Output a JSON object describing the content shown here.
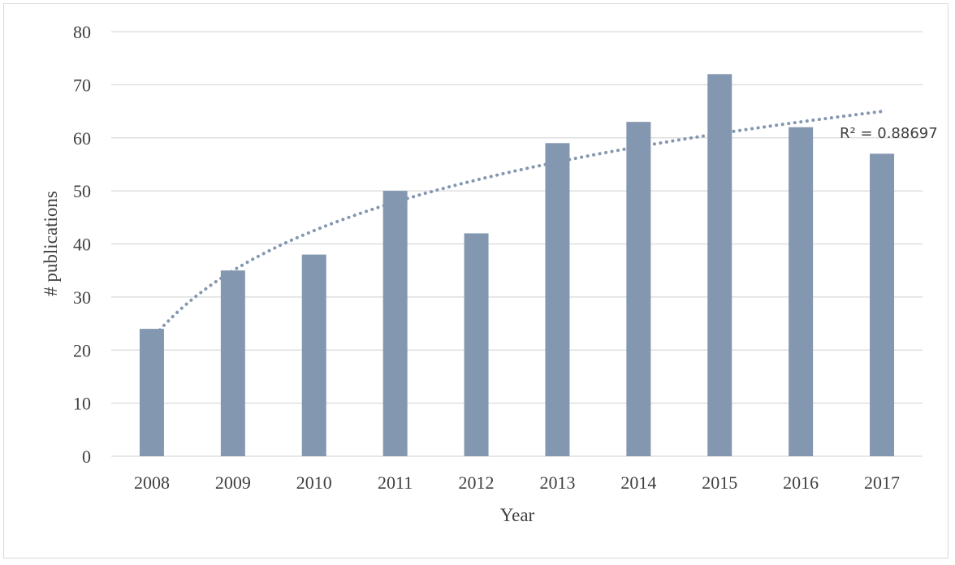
{
  "chart_data": {
    "type": "bar",
    "categories": [
      "2008",
      "2009",
      "2010",
      "2011",
      "2012",
      "2013",
      "2014",
      "2015",
      "2016",
      "2017"
    ],
    "values": [
      24,
      35,
      38,
      50,
      42,
      59,
      63,
      72,
      62,
      57
    ],
    "xlabel": "Year",
    "ylabel": "# publications",
    "ylim": [
      0,
      80
    ],
    "yticks": [
      0,
      10,
      20,
      30,
      40,
      50,
      60,
      70,
      80
    ],
    "grid": true,
    "bar_color": "#8497b0",
    "trendline": {
      "type": "logarithmic",
      "style": "dotted",
      "color": "#8497b0",
      "r_squared_label": "R² = 0.88697"
    }
  }
}
